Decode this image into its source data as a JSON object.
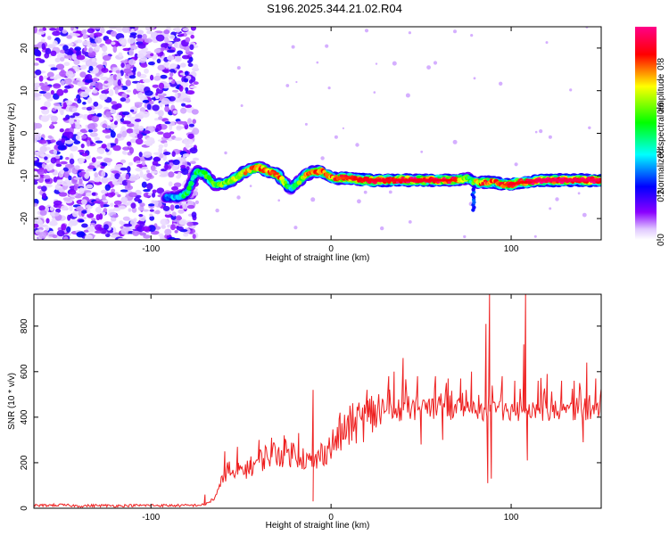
{
  "title": "S196.2025.344.21.02.R04",
  "chart_data": [
    {
      "type": "heatmap",
      "xlabel": "Height of straight line (km)",
      "ylabel": "Frequency (Hz)",
      "xlim": [
        -165,
        150
      ],
      "ylim": [
        -25,
        25
      ],
      "xticks": [
        "-100",
        "0",
        "100"
      ],
      "yticks": [
        "-20",
        "-10",
        "0",
        "10",
        "20"
      ],
      "colorbar": {
        "label": "Normalized spectral amplitude",
        "range": [
          0,
          0.97
        ],
        "ticks": [
          "0.0",
          "0.2",
          "0.4",
          "0.6",
          "0.8"
        ],
        "colors": [
          "#ffffff",
          "#8a00ff",
          "#0000ff",
          "#00ffff",
          "#00ff00",
          "#ffff00",
          "#ff0000",
          "#ff0088"
        ]
      },
      "noise_region_x": [
        -165,
        -75
      ],
      "ridge": {
        "x": [
          -92,
          -85,
          -80,
          -75,
          -70,
          -65,
          -60,
          -55,
          -50,
          -45,
          -40,
          -35,
          -30,
          -25,
          -22,
          -20,
          -17,
          -15,
          -10,
          -5,
          0,
          10,
          20,
          30,
          40,
          50,
          60,
          70,
          75,
          78,
          80,
          85,
          90,
          95,
          100,
          105,
          110,
          115,
          120,
          130,
          140,
          150
        ],
        "freq": [
          -15,
          -15,
          -14,
          -9,
          -9.5,
          -12,
          -12,
          -11,
          -9.5,
          -8.5,
          -8,
          -9,
          -9.5,
          -12,
          -13,
          -12,
          -11,
          -10,
          -9,
          -9,
          -10.5,
          -10.5,
          -11,
          -11,
          -11,
          -11,
          -11,
          -11,
          -10.5,
          -11,
          -11.5,
          -11.5,
          -11.5,
          -12,
          -12,
          -11.5,
          -11.5,
          -11,
          -11,
          -11,
          -11,
          -11
        ],
        "amp": [
          0.3,
          0.4,
          0.5,
          0.5,
          0.55,
          0.6,
          0.6,
          0.65,
          0.7,
          0.75,
          0.8,
          0.8,
          0.85,
          0.6,
          0.4,
          0.5,
          0.6,
          0.7,
          0.8,
          0.8,
          0.8,
          0.85,
          0.9,
          0.9,
          0.9,
          0.9,
          0.9,
          0.85,
          0.6,
          0.5,
          0.7,
          0.8,
          0.8,
          0.8,
          0.9,
          0.85,
          0.9,
          0.95,
          0.95,
          0.95,
          0.95,
          0.95
        ]
      }
    },
    {
      "type": "line",
      "xlabel": "Height of straight line (km)",
      "ylabel": "SNR (10 * v/v)",
      "xlim": [
        -165,
        150
      ],
      "ylim": [
        0,
        940
      ],
      "xticks": [
        "-100",
        "0",
        "100"
      ],
      "yticks": [
        "0",
        "200",
        "400",
        "600",
        "800"
      ],
      "color": "#ee2020",
      "series": [
        {
          "x": [
            -165,
            -150,
            -140,
            -130,
            -120,
            -110,
            -100,
            -90,
            -80,
            -70,
            -65,
            -62,
            -60,
            -57,
            -55,
            -50,
            -45,
            -40,
            -35,
            -30,
            -25,
            -20,
            -15,
            -10,
            -5,
            0,
            5,
            10,
            15,
            20,
            25,
            30,
            35,
            40,
            45,
            50,
            55,
            60,
            65,
            70,
            75,
            80,
            85,
            90,
            95,
            100,
            105,
            110,
            115,
            120,
            125,
            130,
            135,
            140,
            145,
            150
          ],
          "y": [
            12,
            14,
            10,
            12,
            11,
            12,
            13,
            12,
            12,
            15,
            40,
            80,
            130,
            170,
            130,
            160,
            170,
            200,
            220,
            230,
            230,
            230,
            210,
            180,
            230,
            260,
            300,
            340,
            360,
            380,
            400,
            410,
            420,
            430,
            430,
            430,
            430,
            435,
            430,
            430,
            430,
            430,
            425,
            425,
            430,
            430,
            425,
            430,
            430,
            425,
            430,
            430,
            430,
            430,
            430,
            430
          ]
        }
      ],
      "spikes": [
        {
          "x": -70,
          "y": 60
        },
        {
          "x": -59,
          "y": 250
        },
        {
          "x": -52,
          "y": 270
        },
        {
          "x": -45,
          "y": 210
        },
        {
          "x": -40,
          "y": 300
        },
        {
          "x": -33,
          "y": 310
        },
        {
          "x": -26,
          "y": 320
        },
        {
          "x": -18,
          "y": 330
        },
        {
          "x": -10,
          "y": 520
        },
        {
          "x": -10,
          "y": 30
        },
        {
          "x": 5,
          "y": 420
        },
        {
          "x": 20,
          "y": 520
        },
        {
          "x": 32,
          "y": 580
        },
        {
          "x": 35,
          "y": 600
        },
        {
          "x": 40,
          "y": 660
        },
        {
          "x": 48,
          "y": 580
        },
        {
          "x": 58,
          "y": 580
        },
        {
          "x": 62,
          "y": 300
        },
        {
          "x": 65,
          "y": 570
        },
        {
          "x": 72,
          "y": 570
        },
        {
          "x": 78,
          "y": 600
        },
        {
          "x": 86,
          "y": 810
        },
        {
          "x": 87,
          "y": 110
        },
        {
          "x": 88,
          "y": 940
        },
        {
          "x": 89,
          "y": 130
        },
        {
          "x": 95,
          "y": 580
        },
        {
          "x": 102,
          "y": 560
        },
        {
          "x": 107,
          "y": 720
        },
        {
          "x": 108,
          "y": 940
        },
        {
          "x": 109,
          "y": 210
        },
        {
          "x": 115,
          "y": 560
        },
        {
          "x": 120,
          "y": 590
        },
        {
          "x": 128,
          "y": 560
        },
        {
          "x": 135,
          "y": 560
        },
        {
          "x": 142,
          "y": 640
        },
        {
          "x": 147,
          "y": 570
        },
        {
          "x": 140,
          "y": 290
        },
        {
          "x": 50,
          "y": 280
        }
      ]
    }
  ]
}
